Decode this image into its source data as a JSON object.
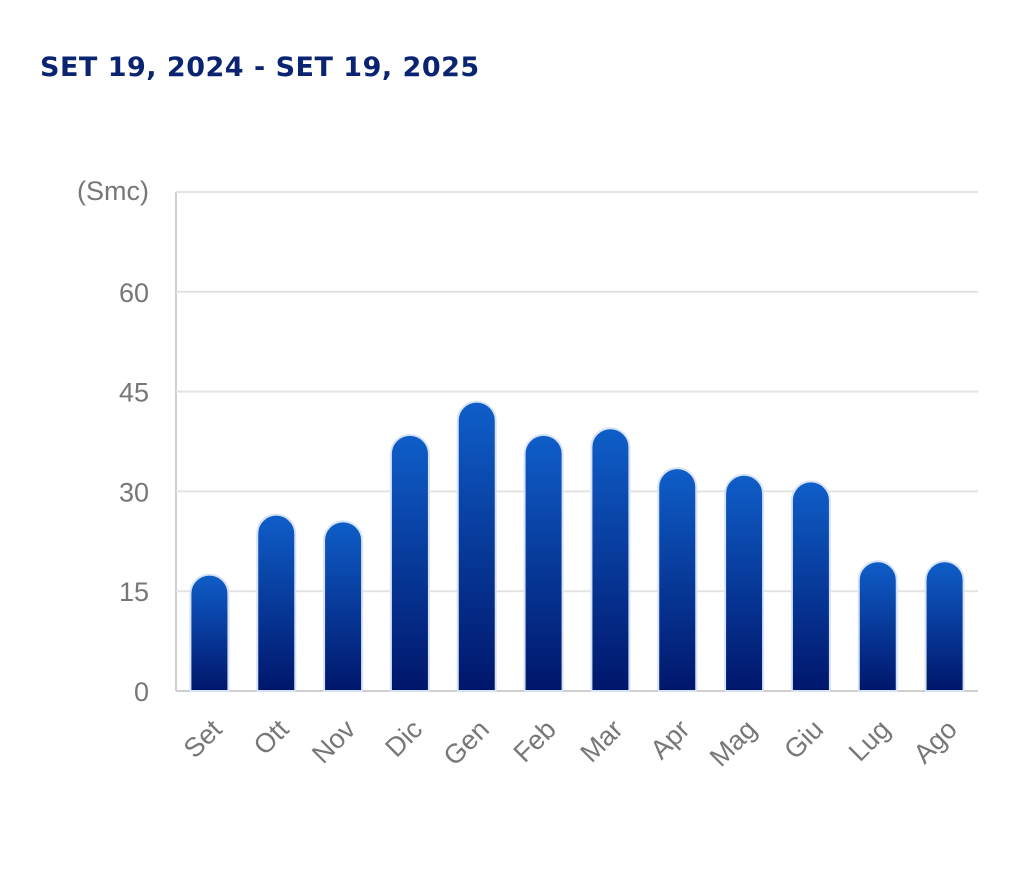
{
  "header": {
    "title": "SET 19, 2024 - SET 19, 2025"
  },
  "colors": {
    "bar_top": "#0f5ec9",
    "bar_bottom": "#00166b",
    "bar_outline": "#d6e2f5",
    "grid": "#e3e3e3",
    "axis": "#cfcfcf",
    "text": "#777777",
    "title": "#0a2472"
  },
  "chart_data": {
    "type": "bar",
    "title": "",
    "xlabel": "",
    "ylabel": "(Smc)",
    "categories": [
      "Set",
      "Ott",
      "Nov",
      "Dic",
      "Gen",
      "Feb",
      "Mar",
      "Apr",
      "Mag",
      "Giu",
      "Lug",
      "Ago"
    ],
    "values": [
      17.5,
      26.5,
      25.5,
      38.5,
      43.5,
      38.5,
      39.5,
      33.5,
      32.5,
      31.5,
      19.5,
      19.5
    ],
    "ylim": [
      0,
      75
    ],
    "yticks": [
      0,
      15,
      30,
      45,
      60
    ],
    "grid": true,
    "legend": "none"
  }
}
